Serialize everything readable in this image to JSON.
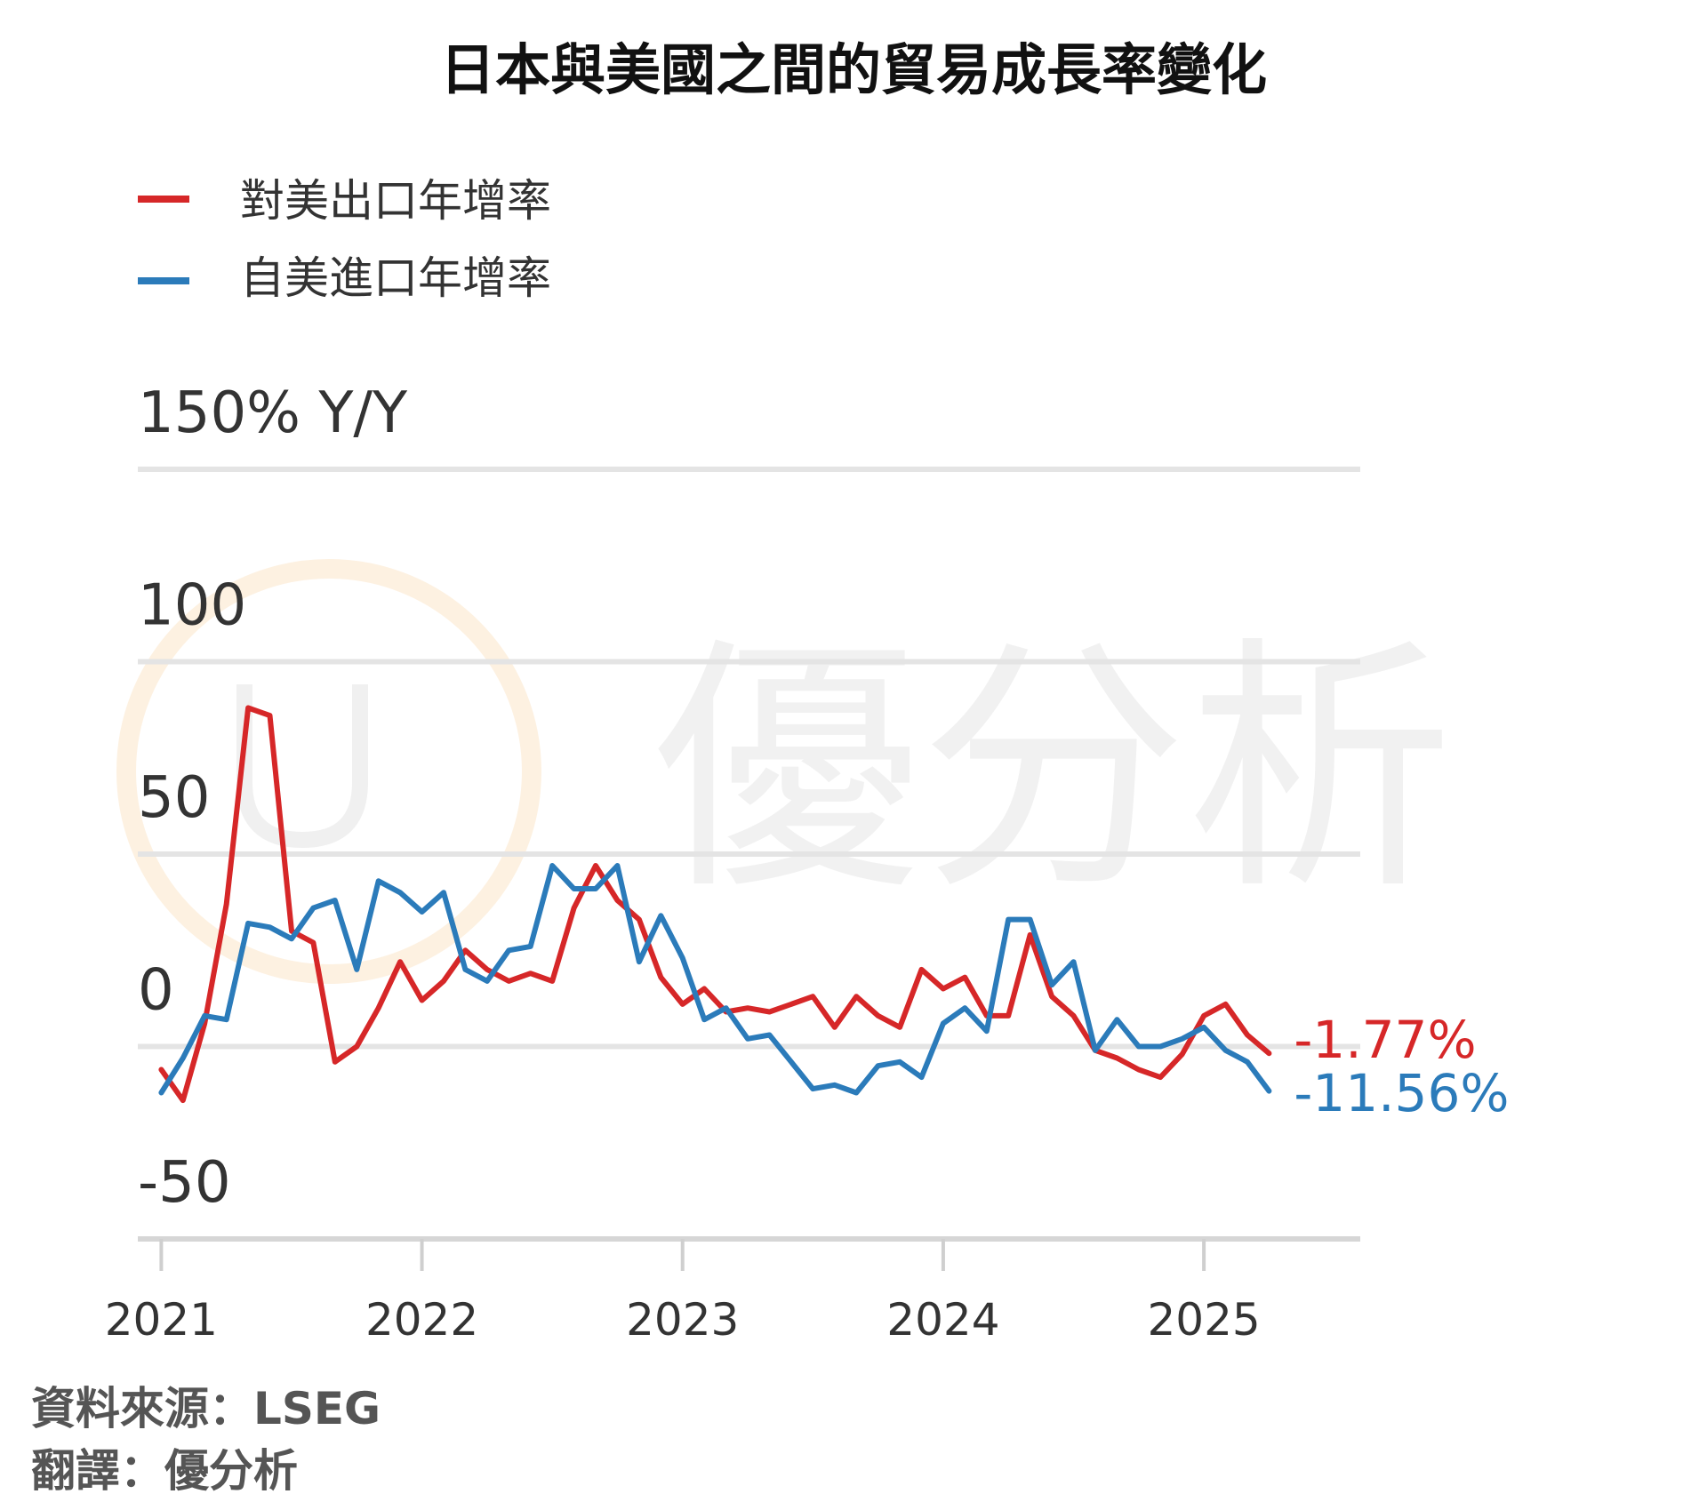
{
  "chart_data": {
    "type": "line",
    "title": "日本與美國之間的貿易成長率變化",
    "ylabel_unit": "150% Y/Y",
    "ylim": [
      -50,
      150
    ],
    "y_ticks": [
      {
        "value": 150,
        "label": "150% Y/Y"
      },
      {
        "value": 100,
        "label": "100"
      },
      {
        "value": 50,
        "label": "50"
      },
      {
        "value": 0,
        "label": "0"
      },
      {
        "value": -50,
        "label": "-50"
      }
    ],
    "x_ticks": [
      "2021",
      "2022",
      "2023",
      "2024",
      "2025"
    ],
    "x_start_year": 2021,
    "x_range": [
      2020.91,
      2025.6
    ],
    "grid": true,
    "legend_position": "top-left",
    "series": [
      {
        "name": "對美出口年增率",
        "color": "#d62728",
        "end_label": "-1.77%",
        "values": [
          -6,
          -14,
          6,
          37,
          88,
          86,
          30,
          27,
          -4,
          0,
          10,
          22,
          12,
          17,
          25,
          20,
          17,
          19,
          17,
          36,
          47,
          38,
          33,
          18,
          11,
          15,
          9,
          10,
          9,
          11,
          13,
          5,
          13,
          8,
          5,
          20,
          15,
          18,
          8,
          8,
          29,
          13,
          8,
          -1,
          -3,
          -6,
          -8,
          -2,
          8,
          11,
          3,
          -1.77
        ]
      },
      {
        "name": "自美進口年增率",
        "color": "#2b7bba",
        "end_label": "-11.56%",
        "values": [
          -12,
          -3,
          8,
          7,
          32,
          31,
          28,
          36,
          38,
          20,
          43,
          40,
          35,
          40,
          20,
          17,
          25,
          26,
          47,
          41,
          41,
          47,
          22,
          34,
          23,
          7,
          10,
          2,
          3,
          -4,
          -11,
          -10,
          -12,
          -5,
          -4,
          -8,
          6,
          10,
          4,
          33,
          33,
          16,
          22,
          -1,
          7,
          0,
          0,
          2,
          5,
          -1,
          -4,
          -11.56
        ]
      }
    ]
  },
  "legend": {
    "items": [
      {
        "label": "對美出口年增率",
        "color": "#d62728"
      },
      {
        "label": "自美進口年增率",
        "color": "#2b7bba"
      }
    ]
  },
  "source": {
    "line1": "資料來源：LSEG",
    "line2": "翻譯：優分析"
  },
  "watermark": {
    "text": "優分析",
    "circle_color": "#fbe6c8",
    "text_color": "#f1f1f1"
  }
}
